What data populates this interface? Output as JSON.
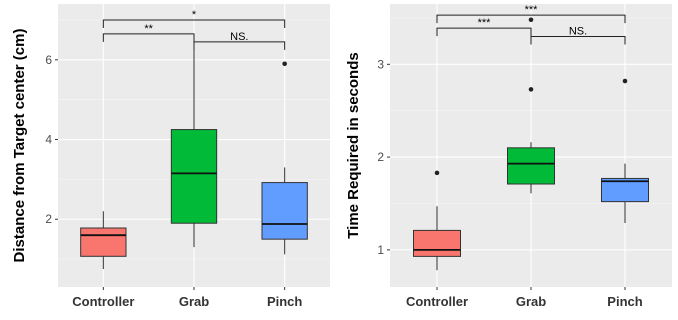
{
  "chart_data": [
    {
      "type": "boxplot",
      "ylabel": "Distance from Target center (cm)",
      "xlabel": "",
      "ylim": [
        0.3,
        7.4
      ],
      "yticks": [
        2,
        4,
        6
      ],
      "grid": true,
      "categories": [
        "Controller",
        "Grab",
        "Pinch"
      ],
      "colors": [
        "#f8766d",
        "#00ba38",
        "#619cff"
      ],
      "boxes": [
        {
          "category": "Controller",
          "whisker_low": 0.75,
          "q1": 1.07,
          "median": 1.6,
          "q3": 1.78,
          "whisker_high": 2.2,
          "outliers": []
        },
        {
          "category": "Grab",
          "whisker_low": 1.3,
          "q1": 1.9,
          "median": 3.15,
          "q3": 4.25,
          "whisker_high": 6.3,
          "outliers": []
        },
        {
          "category": "Pinch",
          "whisker_low": 1.12,
          "q1": 1.5,
          "median": 1.88,
          "q3": 2.92,
          "whisker_high": 3.3,
          "outliers": [
            5.9
          ]
        }
      ],
      "significance": [
        {
          "from": "Controller",
          "to": "Pinch",
          "label": "*",
          "y": 7.0
        },
        {
          "from": "Controller",
          "to": "Grab",
          "label": "**",
          "y": 6.65
        },
        {
          "from": "Grab",
          "to": "Pinch",
          "label": "NS.",
          "y": 6.45
        }
      ]
    },
    {
      "type": "boxplot",
      "ylabel": "Time Required in seconds",
      "xlabel": "",
      "ylim": [
        0.6,
        3.65
      ],
      "yticks": [
        1,
        2,
        3
      ],
      "grid": true,
      "categories": [
        "Controller",
        "Grab",
        "Pinch"
      ],
      "colors": [
        "#f8766d",
        "#00ba38",
        "#619cff"
      ],
      "boxes": [
        {
          "category": "Controller",
          "whisker_low": 0.78,
          "q1": 0.93,
          "median": 1.0,
          "q3": 1.21,
          "whisker_high": 1.47,
          "outliers": [
            1.83
          ]
        },
        {
          "category": "Grab",
          "whisker_low": 1.61,
          "q1": 1.71,
          "median": 1.93,
          "q3": 2.1,
          "whisker_high": 2.16,
          "outliers": [
            2.73,
            3.48
          ]
        },
        {
          "category": "Pinch",
          "whisker_low": 1.29,
          "q1": 1.52,
          "median": 1.74,
          "q3": 1.77,
          "whisker_high": 1.93,
          "outliers": [
            2.82
          ]
        }
      ],
      "significance": [
        {
          "from": "Controller",
          "to": "Pinch",
          "label": "***",
          "y": 3.53
        },
        {
          "from": "Controller",
          "to": "Grab",
          "label": "***",
          "y": 3.39
        },
        {
          "from": "Grab",
          "to": "Pinch",
          "label": "NS.",
          "y": 3.3
        }
      ]
    }
  ]
}
